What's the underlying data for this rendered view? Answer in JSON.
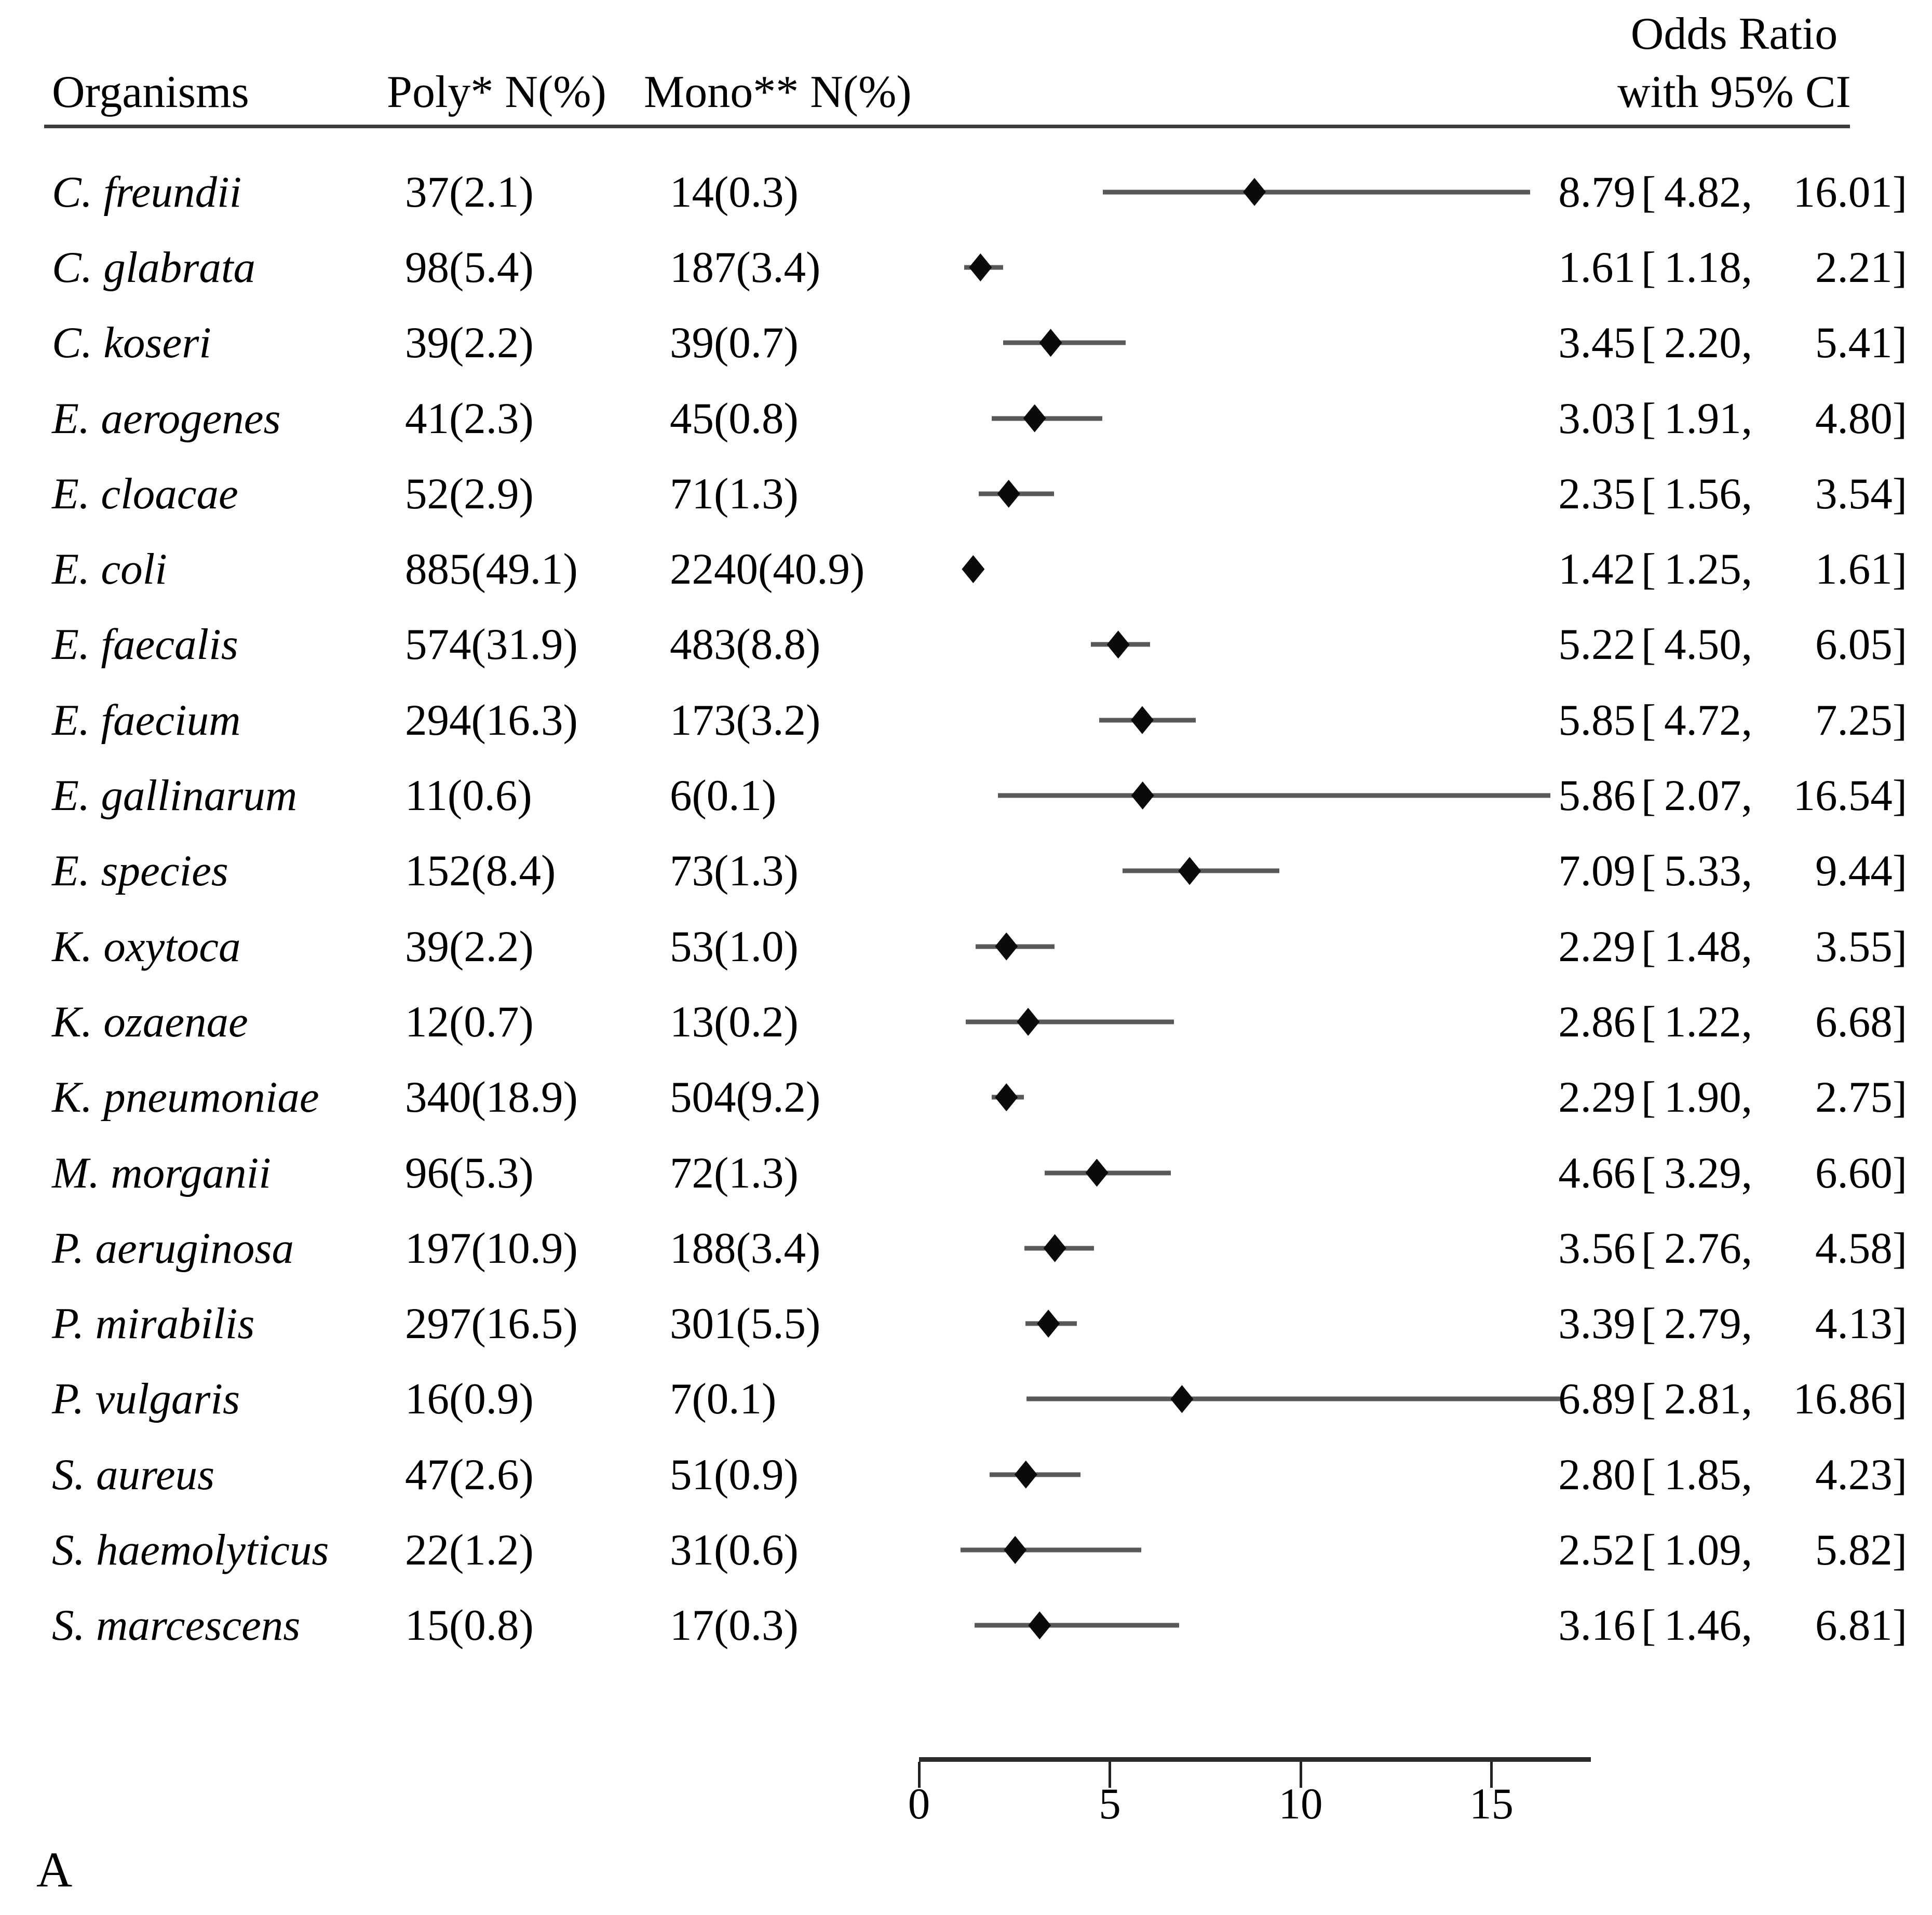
{
  "figure": {
    "panel_label": "A",
    "header": {
      "organisms": "Organisms",
      "poly": "Poly* N(%)",
      "mono": "Mono** N(%)",
      "or_line1": "Odds Ratio",
      "or_line2": "with 95% CI"
    }
  },
  "colors": {
    "text": "#000000",
    "rule": "#3d3d3d",
    "ci_line": "#595959",
    "diamond": "#0a0a0a",
    "axis": "#2b2b2b"
  },
  "chart_data": {
    "type": "forest",
    "title": "Odds Ratio with 95% CI",
    "xlabel": "Odds Ratio",
    "x_ticks": [
      0,
      5,
      10,
      15
    ],
    "xlim": [
      0,
      17.6
    ],
    "grid": false,
    "marker": "diamond",
    "rows": [
      {
        "organism": "C. freundii",
        "poly": "37(2.1)",
        "mono": "14(0.3)",
        "or": "8.79",
        "lo": "4.82",
        "hi": "16.01"
      },
      {
        "organism": "C. glabrata",
        "poly": "98(5.4)",
        "mono": "187(3.4)",
        "or": "1.61",
        "lo": "1.18",
        "hi": "2.21"
      },
      {
        "organism": "C. koseri",
        "poly": "39(2.2)",
        "mono": "39(0.7)",
        "or": "3.45",
        "lo": "2.20",
        "hi": "5.41"
      },
      {
        "organism": "E. aerogenes",
        "poly": "41(2.3)",
        "mono": "45(0.8)",
        "or": "3.03",
        "lo": "1.91",
        "hi": "4.80"
      },
      {
        "organism": "E. cloacae",
        "poly": "52(2.9)",
        "mono": "71(1.3)",
        "or": "2.35",
        "lo": "1.56",
        "hi": "3.54"
      },
      {
        "organism": "E. coli",
        "poly": "885(49.1)",
        "mono": "2240(40.9)",
        "or": "1.42",
        "lo": "1.25",
        "hi": "1.61"
      },
      {
        "organism": "E. faecalis",
        "poly": "574(31.9)",
        "mono": "483(8.8)",
        "or": "5.22",
        "lo": "4.50",
        "hi": "6.05"
      },
      {
        "organism": "E. faecium",
        "poly": "294(16.3)",
        "mono": "173(3.2)",
        "or": "5.85",
        "lo": "4.72",
        "hi": "7.25"
      },
      {
        "organism": "E. gallinarum",
        "poly": "11(0.6)",
        "mono": "6(0.1)",
        "or": "5.86",
        "lo": "2.07",
        "hi": "16.54"
      },
      {
        "organism": "E. species",
        "poly": "152(8.4)",
        "mono": "73(1.3)",
        "or": "7.09",
        "lo": "5.33",
        "hi": "9.44"
      },
      {
        "organism": "K. oxytoca",
        "poly": "39(2.2)",
        "mono": "53(1.0)",
        "or": "2.29",
        "lo": "1.48",
        "hi": "3.55"
      },
      {
        "organism": "K. ozaenae",
        "poly": "12(0.7)",
        "mono": "13(0.2)",
        "or": "2.86",
        "lo": "1.22",
        "hi": "6.68"
      },
      {
        "organism": "K. pneumoniae",
        "poly": "340(18.9)",
        "mono": "504(9.2)",
        "or": "2.29",
        "lo": "1.90",
        "hi": "2.75"
      },
      {
        "organism": "M. morganii",
        "poly": "96(5.3)",
        "mono": "72(1.3)",
        "or": "4.66",
        "lo": "3.29",
        "hi": "6.60"
      },
      {
        "organism": "P. aeruginosa",
        "poly": "197(10.9)",
        "mono": "188(3.4)",
        "or": "3.56",
        "lo": "2.76",
        "hi": "4.58"
      },
      {
        "organism": "P. mirabilis",
        "poly": "297(16.5)",
        "mono": "301(5.5)",
        "or": "3.39",
        "lo": "2.79",
        "hi": "4.13"
      },
      {
        "organism": "P. vulgaris",
        "poly": "16(0.9)",
        "mono": "7(0.1)",
        "or": "6.89",
        "lo": "2.81",
        "hi": "16.86"
      },
      {
        "organism": "S. aureus",
        "poly": "47(2.6)",
        "mono": "51(0.9)",
        "or": "2.80",
        "lo": "1.85",
        "hi": "4.23"
      },
      {
        "organism": "S. haemolyticus",
        "poly": "22(1.2)",
        "mono": "31(0.6)",
        "or": "2.52",
        "lo": "1.09",
        "hi": "5.82"
      },
      {
        "organism": "S. marcescens",
        "poly": "15(0.8)",
        "mono": "17(0.3)",
        "or": "3.16",
        "lo": "1.46",
        "hi": "6.81"
      }
    ]
  }
}
